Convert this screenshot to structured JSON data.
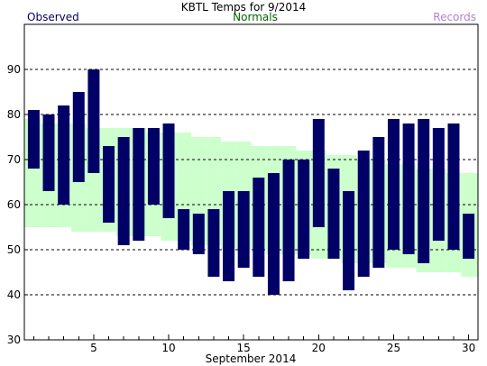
{
  "chart_data": {
    "type": "bar",
    "title": "KBTL Temps for 9/2014",
    "xlabel": "September 2014",
    "ylabel": "",
    "legend": {
      "observed": "Observed",
      "normals": "Normals",
      "records": "Records"
    },
    "colors": {
      "observed": "#000066",
      "normals_band": "#ccffcc",
      "normals_text": "#006600",
      "records_text": "#b080d8",
      "observed_text": "#000066",
      "grid": "#000000"
    },
    "ylim": [
      30,
      100
    ],
    "y_ticks": [
      30,
      40,
      50,
      60,
      70,
      80,
      90
    ],
    "x_ticks": [
      5,
      10,
      15,
      20,
      25,
      30
    ],
    "days": [
      1,
      2,
      3,
      4,
      5,
      6,
      7,
      8,
      9,
      10,
      11,
      12,
      13,
      14,
      15,
      16,
      17,
      18,
      19,
      20,
      21,
      22,
      23,
      24,
      25,
      26,
      27,
      28,
      29,
      30
    ],
    "series": [
      {
        "name": "Observed",
        "high": [
          81,
          80,
          82,
          85,
          90,
          73,
          75,
          77,
          77,
          78,
          59,
          58,
          59,
          63,
          63,
          66,
          67,
          70,
          70,
          79,
          68,
          63,
          72,
          75,
          79,
          78,
          79,
          77,
          78,
          58
        ],
        "low": [
          68,
          63,
          60,
          65,
          67,
          56,
          51,
          52,
          60,
          57,
          50,
          49,
          44,
          43,
          46,
          44,
          40,
          43,
          48,
          55,
          48,
          41,
          44,
          46,
          50,
          49,
          47,
          52,
          50,
          48
        ]
      },
      {
        "name": "Normals",
        "high": [
          79,
          78,
          78,
          78,
          77,
          77,
          77,
          77,
          76,
          76,
          76,
          75,
          75,
          74,
          74,
          73,
          73,
          73,
          72,
          72,
          71,
          71,
          70,
          70,
          69,
          69,
          68,
          68,
          67,
          67
        ],
        "low": [
          55,
          55,
          55,
          54,
          54,
          54,
          53,
          53,
          53,
          52,
          52,
          51,
          51,
          50,
          50,
          50,
          49,
          49,
          49,
          48,
          48,
          47,
          47,
          47,
          46,
          46,
          45,
          45,
          45,
          44
        ]
      }
    ],
    "grid": true,
    "grid_style": "dashed-horizontal"
  }
}
